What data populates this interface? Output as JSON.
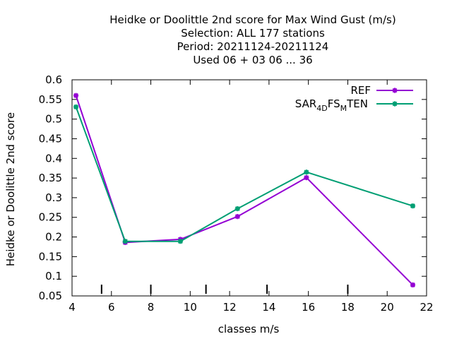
{
  "chart_data": {
    "type": "line",
    "title_lines": [
      "Heidke or Doolittle 2nd score  for Max Wind Gust (m/s)",
      "Selection: ALL    177 stations",
      "Period: 20211124-20211124",
      "Used  06 + 03 06 ... 36"
    ],
    "xlabel": "classes m/s",
    "ylabel": "Heidke or Doolittle 2nd score",
    "xlim": [
      4,
      22
    ],
    "ylim": [
      0.05,
      0.6
    ],
    "xticks": [
      4,
      6,
      8,
      10,
      12,
      14,
      16,
      18,
      20,
      22
    ],
    "xtick_labels": [
      "4",
      "6",
      "8",
      "10",
      "12",
      "14",
      "16",
      "18",
      "20",
      "22"
    ],
    "yticks": [
      0.05,
      0.1,
      0.15,
      0.2,
      0.25,
      0.3,
      0.35,
      0.4,
      0.45,
      0.5,
      0.55,
      0.6
    ],
    "ytick_labels": [
      "0.05",
      "0.1",
      "0.15",
      "0.2",
      "0.25",
      "0.3",
      "0.35",
      "0.4",
      "0.45",
      "0.5",
      "0.55",
      "0.6"
    ],
    "class_marks": [
      5.5,
      8,
      10.8,
      13.9,
      18
    ],
    "grid": false,
    "legend_position": "top-right",
    "series": [
      {
        "name": "REF",
        "color": "#9400d3",
        "x": [
          4.2,
          6.7,
          9.5,
          12.4,
          15.9,
          21.3
        ],
        "y": [
          0.56,
          0.186,
          0.194,
          0.252,
          0.351,
          0.078
        ]
      },
      {
        "name": "SAR_4D FS_M TEN",
        "legend_parts": [
          "SAR",
          "4D",
          "FS",
          "M",
          "TEN"
        ],
        "color": "#009e73",
        "x": [
          4.2,
          6.7,
          9.5,
          12.4,
          15.9,
          21.3
        ],
        "y": [
          0.531,
          0.189,
          0.189,
          0.272,
          0.365,
          0.279
        ]
      }
    ]
  }
}
